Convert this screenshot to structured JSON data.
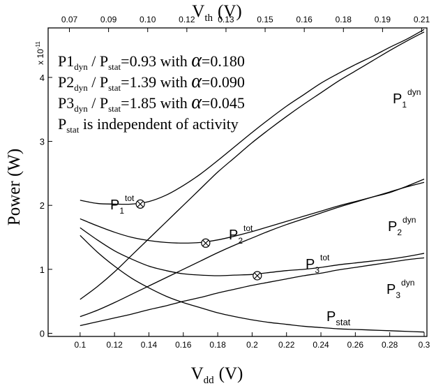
{
  "chart_data": {
    "type": "line",
    "title": "",
    "xlabel_main": "V",
    "xlabel_sub": "dd",
    "xlabel_unit": "(V)",
    "x2label_main": "V",
    "x2label_sub": "th",
    "x2label_unit": "(V)",
    "ylabel": "Power (W)",
    "y_multiplier": "x 10",
    "y_multiplier_exp": "-11",
    "xlim": [
      0.1,
      0.3
    ],
    "ylim": [
      0,
      5
    ],
    "x_ticks": [
      "0.1",
      "0.12",
      "0.14",
      "0.16",
      "0.18",
      "0.2",
      "0.22",
      "0.24",
      "0.26",
      "0.28",
      "0.3"
    ],
    "x2_ticks": [
      "0.07",
      "0.09",
      "0.10",
      "0.12",
      "0.13",
      "0.15",
      "0.16",
      "0.18",
      "0.19",
      "0.21"
    ],
    "y_ticks": [
      "0",
      "1",
      "2",
      "3",
      "4"
    ],
    "x": [
      0.1,
      0.11,
      0.12,
      0.13,
      0.14,
      0.15,
      0.16,
      0.17,
      0.18,
      0.19,
      0.2,
      0.21,
      0.22,
      0.23,
      0.24,
      0.25,
      0.26,
      0.27,
      0.28,
      0.29,
      0.3
    ],
    "series": [
      {
        "name": "P1_dyn",
        "values": [
          0.53,
          0.73,
          0.96,
          1.22,
          1.48,
          1.74,
          2.0,
          2.26,
          2.52,
          2.75,
          2.98,
          3.19,
          3.39,
          3.58,
          3.76,
          3.94,
          4.1,
          4.26,
          4.42,
          4.57,
          4.71
        ]
      },
      {
        "name": "P2_dyn",
        "values": [
          0.26,
          0.36,
          0.48,
          0.61,
          0.74,
          0.87,
          1.0,
          1.13,
          1.26,
          1.38,
          1.49,
          1.6,
          1.7,
          1.79,
          1.88,
          1.97,
          2.05,
          2.13,
          2.21,
          2.29,
          2.36
        ]
      },
      {
        "name": "P3_dyn",
        "values": [
          0.12,
          0.18,
          0.24,
          0.3,
          0.37,
          0.43,
          0.5,
          0.56,
          0.63,
          0.69,
          0.75,
          0.8,
          0.85,
          0.9,
          0.94,
          0.99,
          1.03,
          1.07,
          1.11,
          1.15,
          1.18
        ]
      },
      {
        "name": "P_stat",
        "values": [
          1.53,
          1.27,
          1.05,
          0.86,
          0.71,
          0.58,
          0.48,
          0.4,
          0.32,
          0.26,
          0.21,
          0.17,
          0.14,
          0.11,
          0.09,
          0.07,
          0.06,
          0.05,
          0.04,
          0.03,
          0.02
        ]
      },
      {
        "name": "P1_tot",
        "values": [
          2.08,
          2.03,
          2.02,
          2.02,
          2.06,
          2.16,
          2.31,
          2.49,
          2.7,
          2.92,
          3.14,
          3.35,
          3.55,
          3.73,
          3.91,
          4.06,
          4.2,
          4.33,
          4.47,
          4.6,
          4.75
        ]
      },
      {
        "name": "P2_tot",
        "values": [
          1.79,
          1.68,
          1.58,
          1.5,
          1.45,
          1.42,
          1.41,
          1.42,
          1.46,
          1.52,
          1.59,
          1.67,
          1.75,
          1.83,
          1.91,
          1.99,
          2.06,
          2.13,
          2.2,
          2.3,
          2.41
        ]
      },
      {
        "name": "P3_tot",
        "values": [
          1.65,
          1.46,
          1.29,
          1.16,
          1.05,
          0.98,
          0.93,
          0.91,
          0.9,
          0.91,
          0.92,
          0.95,
          0.98,
          1.0,
          1.03,
          1.07,
          1.1,
          1.13,
          1.16,
          1.2,
          1.25
        ]
      }
    ],
    "minimum_markers": [
      {
        "series": "P1_tot",
        "x": 0.135,
        "y": 2.02
      },
      {
        "series": "P2_tot",
        "x": 0.173,
        "y": 1.41
      },
      {
        "series": "P3_tot",
        "x": 0.203,
        "y": 0.9
      }
    ],
    "legend_lines": [
      {
        "a": "P1",
        "a_sub": "dyn",
        "b": " / P",
        "b_sub": "stat",
        "c": "=0.93 with ",
        "alpha": "α",
        "d": "=0.180"
      },
      {
        "a": "P2",
        "a_sub": "dyn",
        "b": " / P",
        "b_sub": "stat",
        "c": "=1.39 with ",
        "alpha": "α",
        "d": "=0.090"
      },
      {
        "a": "P3",
        "a_sub": "dyn",
        "b": " / P",
        "b_sub": "stat",
        "c": "=1.85 with ",
        "alpha": "α",
        "d": "=0.045"
      },
      {
        "a": "P",
        "a_sub": "stat",
        "b": " is independent of activity"
      }
    ],
    "curve_labels": [
      {
        "series": "P1_dyn",
        "main": "P",
        "sub": "1",
        "sup": "dyn"
      },
      {
        "series": "P2_dyn",
        "main": "P",
        "sub": "2",
        "sup": "dyn"
      },
      {
        "series": "P3_dyn",
        "main": "P",
        "sub": "3",
        "sup": "dyn"
      },
      {
        "series": "P1_tot",
        "main": "P",
        "sub": "1",
        "sup": "tot"
      },
      {
        "series": "P2_tot",
        "main": "P",
        "sub": "2",
        "sup": "tot"
      },
      {
        "series": "P3_tot",
        "main": "P",
        "sub": "3",
        "sup": "tot"
      },
      {
        "series": "P_stat",
        "main": "P",
        "sub": "stat",
        "sup": ""
      }
    ],
    "grid": false,
    "line_color": "#000000"
  }
}
